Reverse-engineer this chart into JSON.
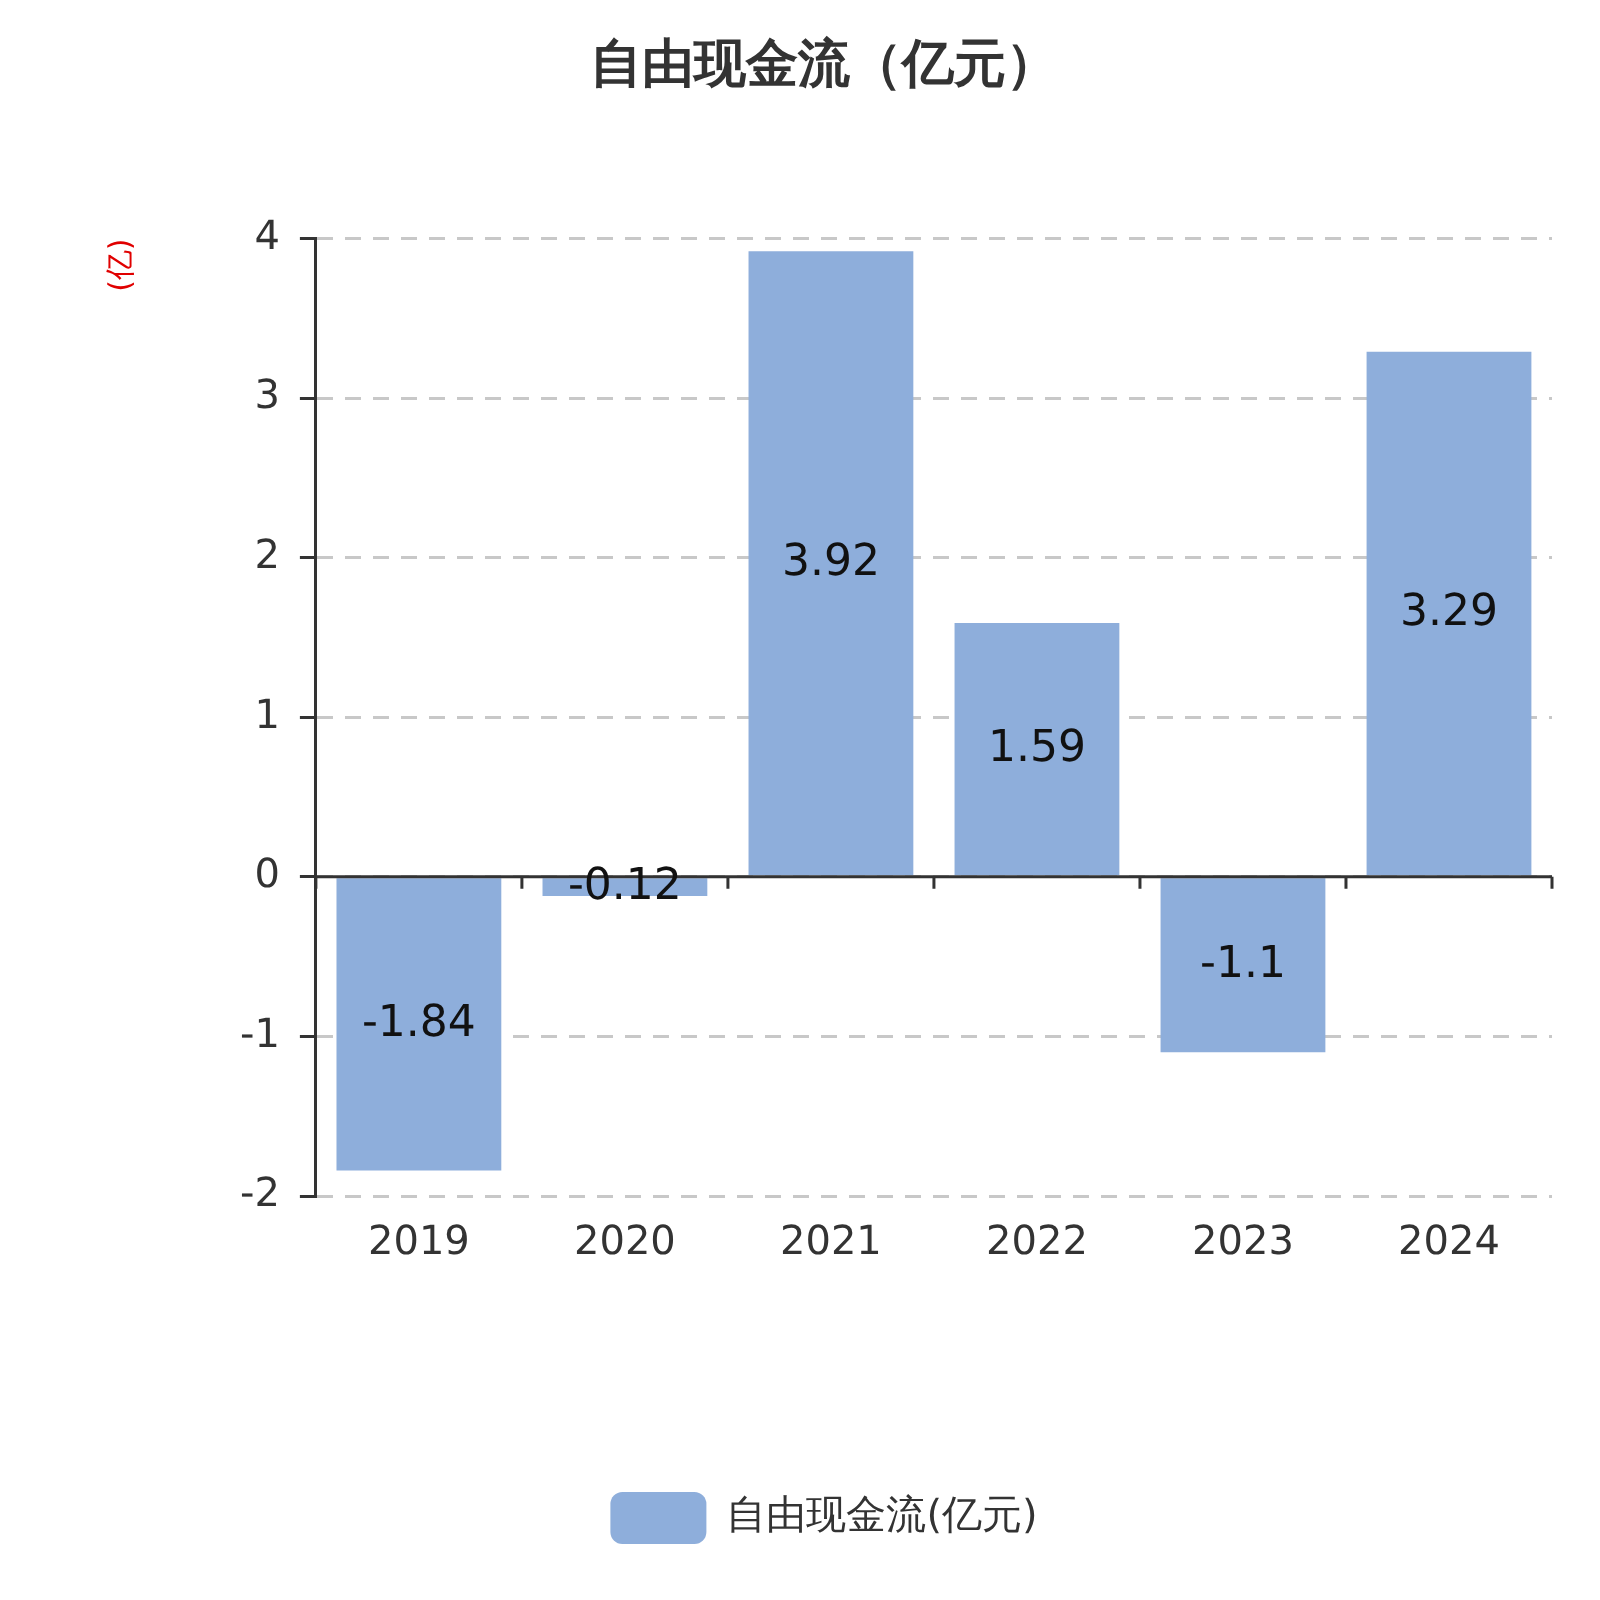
{
  "chart_data": {
    "type": "bar",
    "title": "自由现金流（亿元）",
    "ylabel": "(亿)",
    "categories": [
      "2019",
      "2020",
      "2021",
      "2022",
      "2023",
      "2024"
    ],
    "series": [
      {
        "name": "自由现金流(亿元)",
        "color": "#8eaedb",
        "values": [
          -1.84,
          -0.12,
          3.92,
          1.59,
          -1.1,
          3.29
        ]
      }
    ],
    "ylim": [
      -2,
      4
    ],
    "yticks": [
      -2,
      -1,
      0,
      1,
      2,
      3,
      4
    ],
    "grid": "y",
    "legend": "bottom",
    "data_labels": true
  }
}
